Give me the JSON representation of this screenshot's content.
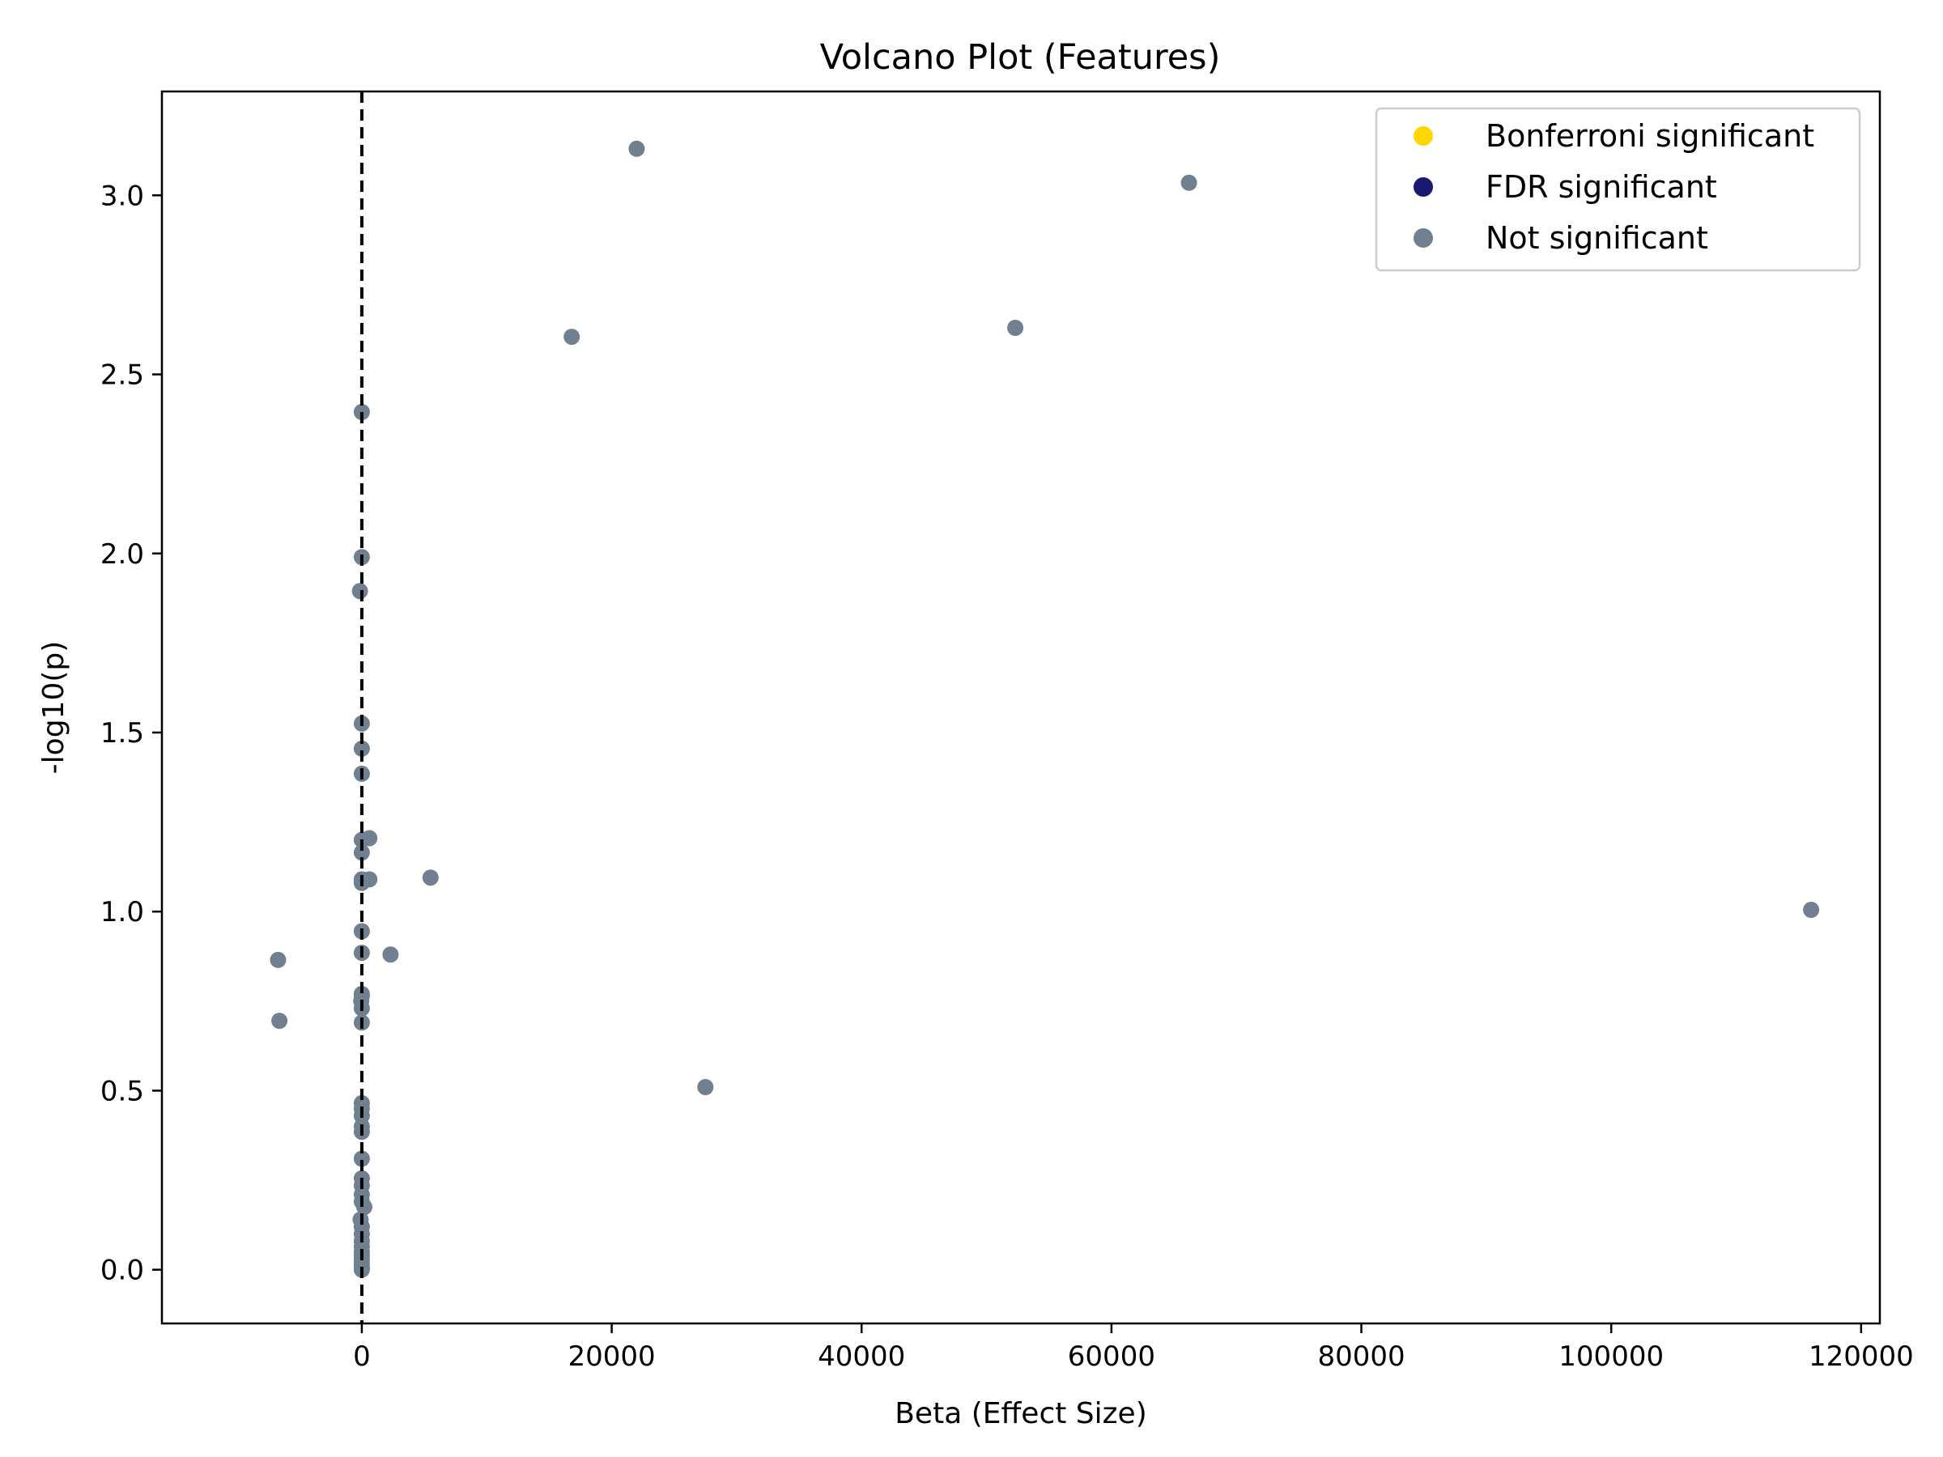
{
  "chart_data": {
    "type": "scatter",
    "title": "Volcano Plot (Features)",
    "xlabel": "Beta (Effect Size)",
    "ylabel": "-log10(p)",
    "xlim": [
      -16000,
      121500
    ],
    "ylim": [
      -0.15,
      3.29
    ],
    "xticks": [
      0,
      20000,
      40000,
      60000,
      80000,
      100000,
      120000
    ],
    "yticks": [
      0.0,
      0.5,
      1.0,
      1.5,
      2.0,
      2.5,
      3.0
    ],
    "xtick_labels": [
      "0",
      "20000",
      "40000",
      "60000",
      "80000",
      "100000",
      "120000"
    ],
    "ytick_labels": [
      "0.0",
      "0.5",
      "1.0",
      "1.5",
      "2.0",
      "2.5",
      "3.0"
    ],
    "grid": false,
    "legend_position": "top-right",
    "reference_line": {
      "x": 0,
      "style": "dashed",
      "color": "#000000"
    },
    "series": [
      {
        "name": "Bonferroni significant",
        "color": "#FFD700",
        "points": []
      },
      {
        "name": "FDR significant",
        "color": "#191970",
        "points": []
      },
      {
        "name": "Not significant",
        "color": "#708090",
        "points": [
          [
            22000,
            3.13
          ],
          [
            66200,
            3.035
          ],
          [
            16800,
            2.605
          ],
          [
            52300,
            2.63
          ],
          [
            0,
            2.395
          ],
          [
            0,
            1.99
          ],
          [
            -150,
            1.895
          ],
          [
            0,
            1.525
          ],
          [
            0,
            1.455
          ],
          [
            0,
            1.385
          ],
          [
            0,
            1.2
          ],
          [
            600,
            1.205
          ],
          [
            0,
            1.165
          ],
          [
            0,
            1.09
          ],
          [
            0,
            1.08
          ],
          [
            600,
            1.09
          ],
          [
            5500,
            1.095
          ],
          [
            116000,
            1.005
          ],
          [
            0,
            0.945
          ],
          [
            0,
            0.885
          ],
          [
            2300,
            0.88
          ],
          [
            -6700,
            0.865
          ],
          [
            -6600,
            0.695
          ],
          [
            0,
            0.77
          ],
          [
            0,
            0.765
          ],
          [
            -50,
            0.75
          ],
          [
            0,
            0.73
          ],
          [
            0,
            0.69
          ],
          [
            27500,
            0.51
          ],
          [
            0,
            0.465
          ],
          [
            0,
            0.45
          ],
          [
            0,
            0.43
          ],
          [
            0,
            0.4
          ],
          [
            0,
            0.385
          ],
          [
            0,
            0.31
          ],
          [
            0,
            0.255
          ],
          [
            0,
            0.235
          ],
          [
            0,
            0.21
          ],
          [
            0,
            0.19
          ],
          [
            200,
            0.175
          ],
          [
            -100,
            0.14
          ],
          [
            0,
            0.12
          ],
          [
            0,
            0.1
          ],
          [
            0,
            0.08
          ],
          [
            0,
            0.065
          ],
          [
            0,
            0.05
          ],
          [
            0,
            0.04
          ],
          [
            0,
            0.03
          ],
          [
            0,
            0.02
          ],
          [
            0,
            0.01
          ],
          [
            0,
            0.005
          ],
          [
            0,
            0.0
          ]
        ]
      }
    ]
  }
}
